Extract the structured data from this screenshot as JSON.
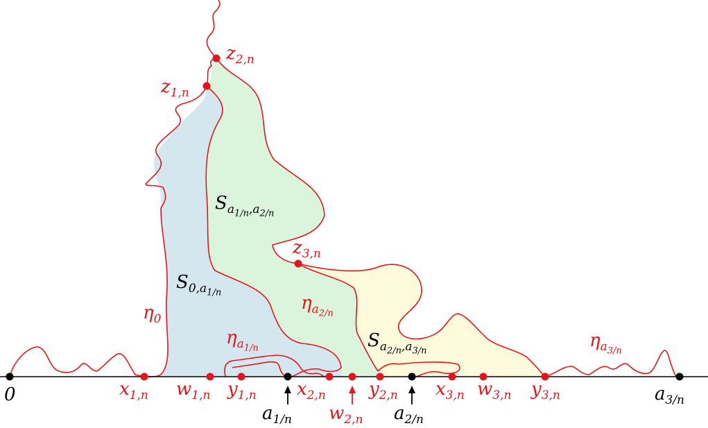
{
  "colors": {
    "curve": "#e8141b",
    "point": "#e8141b",
    "axis": "#000000",
    "region_blue": "#d4e7ef",
    "region_green": "#dbf5dc",
    "region_yellow": "#fdfbdc"
  },
  "axis_labels": {
    "zero": "0",
    "a1": "a",
    "a1_sub": "1/n",
    "a2": "a",
    "a2_sub": "2/n",
    "a3": "a",
    "a3_sub": "3/n"
  },
  "point_labels": {
    "z1": {
      "base": "z",
      "sub": "1,n"
    },
    "z2": {
      "base": "z",
      "sub": "2,n"
    },
    "z3": {
      "base": "z",
      "sub": "3,n"
    },
    "x1": {
      "base": "x",
      "sub": "1,n"
    },
    "w1": {
      "base": "w",
      "sub": "1,n"
    },
    "y1": {
      "base": "y",
      "sub": "1,n"
    },
    "x2": {
      "base": "x",
      "sub": "2,n"
    },
    "w2": {
      "base": "w",
      "sub": "2,n"
    },
    "y2": {
      "base": "y",
      "sub": "2,n"
    },
    "x3": {
      "base": "x",
      "sub": "3,n"
    },
    "w3": {
      "base": "w",
      "sub": "3,n"
    },
    "y3": {
      "base": "y",
      "sub": "3,n"
    }
  },
  "curve_labels": {
    "eta0": {
      "base": "η",
      "sub": "0"
    },
    "eta_a1": {
      "base": "η",
      "sub": "a",
      "subsub": "1/n"
    },
    "eta_a2": {
      "base": "η",
      "sub": "a",
      "subsub": "2/n"
    },
    "eta_a3": {
      "base": "η",
      "sub": "a",
      "subsub": "3/n"
    }
  },
  "region_labels": {
    "S0": {
      "base": "S",
      "sub": "0,a",
      "subsub": "1/n"
    },
    "S1": {
      "base": "S",
      "sub": "a",
      "subsub1": "1/n",
      "mid": ",a",
      "subsub2": "2/n"
    },
    "S2": {
      "base": "S",
      "sub": "a",
      "subsub1": "2/n",
      "mid": ",a",
      "subsub2": "3/n"
    }
  }
}
